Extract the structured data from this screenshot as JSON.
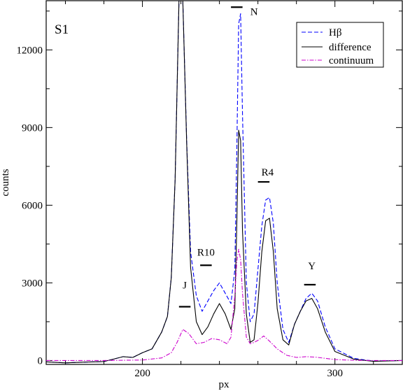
{
  "chart_data": {
    "type": "line",
    "title": "",
    "panel_label": "S1",
    "xlabel": "px",
    "ylabel": "counts",
    "xlim": [
      150,
      335
    ],
    "ylim": [
      -150,
      13900
    ],
    "xticks": [
      200,
      300
    ],
    "yticks": [
      0,
      3000,
      6000,
      9000,
      12000
    ],
    "grid": false,
    "legend": "top-right",
    "series": [
      {
        "name": "Hβ",
        "color": "#0000ff",
        "dash": "dashed",
        "x": [
          150,
          160,
          170,
          180,
          190,
          195,
          200,
          205,
          210,
          213,
          215,
          217,
          219,
          221,
          223,
          225,
          228,
          231,
          234,
          237,
          240,
          243,
          246,
          248,
          249,
          250,
          251,
          252,
          254,
          256,
          258,
          260,
          262,
          264,
          266,
          268,
          270,
          273,
          276,
          279,
          282,
          285,
          288,
          291,
          295,
          300,
          310,
          320,
          335
        ],
        "y": [
          -50,
          -90,
          -60,
          -40,
          150,
          120,
          300,
          450,
          1100,
          1700,
          3200,
          7000,
          13900,
          13900,
          8500,
          4200,
          2500,
          1900,
          2300,
          2700,
          3000,
          2600,
          2200,
          3500,
          8000,
          13000,
          13400,
          9500,
          3000,
          1500,
          1800,
          3500,
          5200,
          6200,
          6300,
          5300,
          3000,
          1200,
          700,
          1400,
          1900,
          2400,
          2600,
          2300,
          1300,
          450,
          80,
          -20,
          0
        ]
      },
      {
        "name": "difference",
        "color": "#000000",
        "dash": "solid",
        "x": [
          150,
          160,
          170,
          180,
          190,
          195,
          200,
          205,
          210,
          213,
          215,
          217,
          219,
          221,
          223,
          225,
          228,
          231,
          234,
          237,
          240,
          243,
          246,
          248,
          249,
          250,
          251,
          252,
          254,
          256,
          258,
          260,
          262,
          264,
          266,
          268,
          270,
          273,
          276,
          279,
          282,
          285,
          288,
          291,
          295,
          300,
          310,
          320,
          335
        ],
        "y": [
          -50,
          -90,
          -60,
          -40,
          150,
          120,
          300,
          450,
          1100,
          1700,
          3200,
          7000,
          13900,
          13900,
          8400,
          3600,
          1500,
          1000,
          1300,
          1800,
          2200,
          1800,
          1200,
          2000,
          5200,
          8900,
          8500,
          5000,
          1800,
          700,
          800,
          2200,
          4200,
          5400,
          5500,
          4200,
          2000,
          800,
          600,
          1400,
          1900,
          2300,
          2400,
          2000,
          1100,
          350,
          50,
          -30,
          0
        ]
      },
      {
        "name": "continuum",
        "color": "#cc00cc",
        "dash": "dashdot",
        "x": [
          150,
          180,
          200,
          210,
          215,
          218,
          221,
          224,
          228,
          232,
          236,
          240,
          244,
          246,
          248,
          249,
          250,
          251,
          252,
          254,
          256,
          258,
          260,
          263,
          266,
          270,
          275,
          280,
          285,
          290,
          300,
          310,
          320,
          335
        ],
        "y": [
          0,
          0,
          20,
          100,
          300,
          700,
          1200,
          1050,
          650,
          700,
          850,
          800,
          650,
          900,
          2500,
          3800,
          4300,
          3900,
          2600,
          900,
          650,
          700,
          780,
          950,
          750,
          450,
          200,
          120,
          150,
          130,
          40,
          10,
          0,
          0
        ]
      }
    ],
    "annotations": [
      {
        "text": "N",
        "x": 258,
        "y": 13350,
        "bar_x": [
          246,
          252
        ],
        "bar_y": 13650
      },
      {
        "text": "R4",
        "x": 265,
        "y": 7150,
        "bar_x": [
          260,
          266
        ],
        "bar_y": 6900
      },
      {
        "text": "R10",
        "x": 233,
        "y": 4050,
        "bar_x": [
          230,
          236
        ],
        "bar_y": 3680
      },
      {
        "text": "J",
        "x": 222,
        "y": 2780,
        "bar_x": [
          219,
          225
        ],
        "bar_y": 2080
      },
      {
        "text": "Y",
        "x": 288,
        "y": 3520,
        "bar_x": [
          284,
          290
        ],
        "bar_y": 2930
      }
    ]
  }
}
